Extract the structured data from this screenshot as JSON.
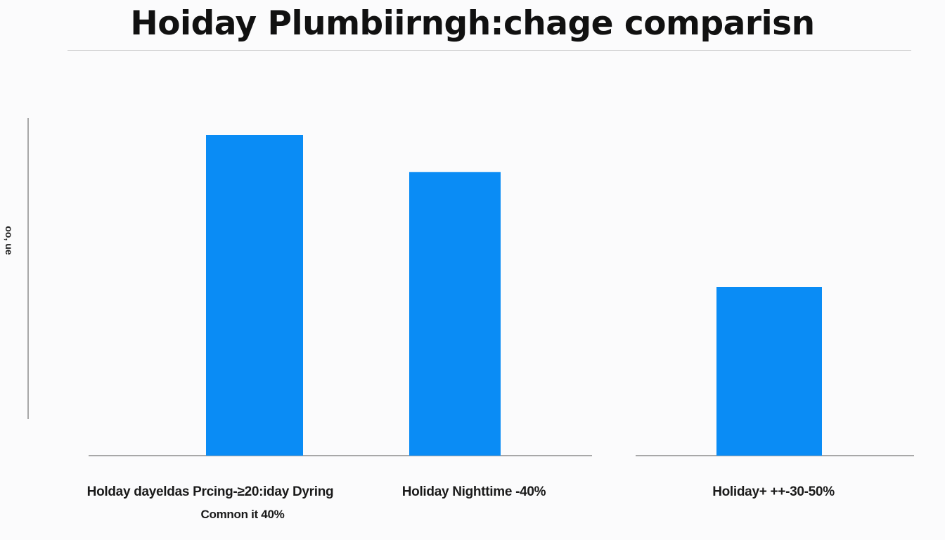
{
  "chart_data": {
    "type": "bar",
    "title": "Hoiday Plumbiirngh:chage comparisn",
    "ylabel": "oo, ue",
    "xlabel": "",
    "categories": [
      "Holday dayeldas Prcing-≥20:iday Dyring",
      "Holiday Nighttime -40%",
      "Holiday+ ++-30-50%"
    ],
    "category_sublabels": [
      "Comnon it 40%",
      "",
      ""
    ],
    "values": [
      95,
      84,
      50
    ],
    "ylim": [
      0,
      100
    ],
    "grid": false,
    "colors": {
      "bar": "#0a8cf5",
      "axis": "#555555"
    }
  }
}
